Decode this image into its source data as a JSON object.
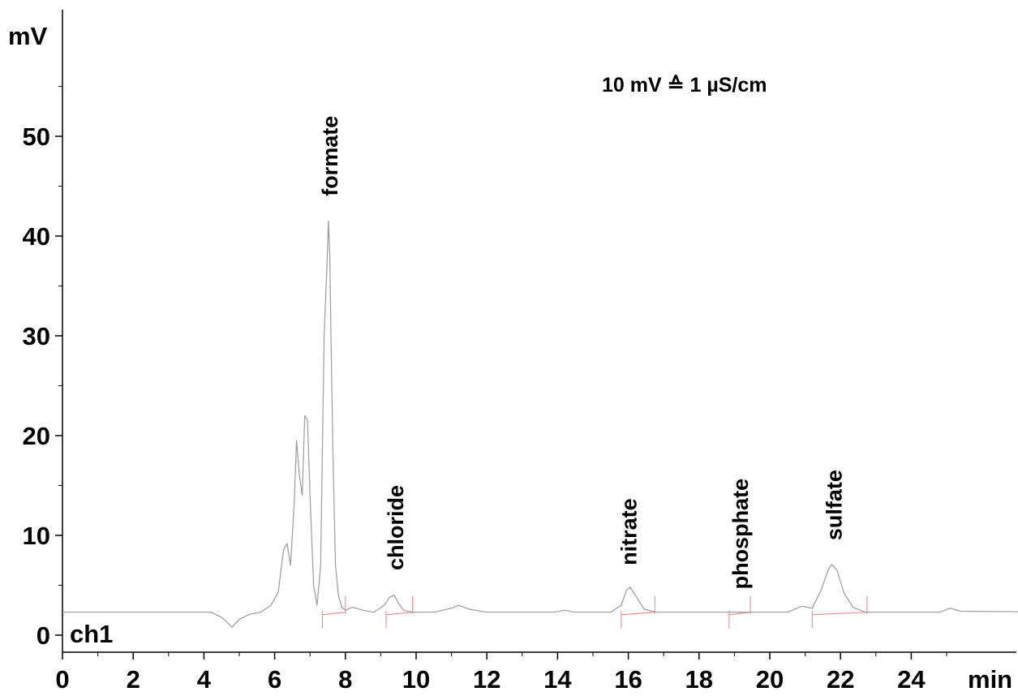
{
  "chart_data": {
    "type": "line",
    "title": "",
    "ylabel": "mV",
    "xlabel": "min",
    "channel_label": "ch1",
    "annotation": "10 mV ≙ 1 µS/cm",
    "xlim": [
      0,
      29
    ],
    "ylim": [
      -2,
      62
    ],
    "xticks": [
      0,
      2,
      4,
      6,
      8,
      10,
      12,
      14,
      16,
      18,
      20,
      22,
      24
    ],
    "xtick_labels": [
      "0",
      "2",
      "4",
      "6",
      "8",
      "10",
      "12",
      "14",
      "16",
      "18",
      "20",
      "22",
      "24"
    ],
    "yticks": [
      0,
      10,
      20,
      30,
      40,
      50
    ],
    "ytick_labels": [
      "0",
      "10",
      "20",
      "30",
      "40",
      "50"
    ],
    "grid": false,
    "baseline": 2.3,
    "colors": {
      "trace": "#9a9a9a",
      "integration": "#f08080",
      "axis": "#000000",
      "text": "#000000"
    },
    "series": [
      {
        "x": [
          0,
          4.2,
          4.5,
          4.8,
          5.0,
          5.3,
          5.6,
          5.9,
          6.1,
          6.25,
          6.35,
          6.45,
          6.55,
          6.62,
          6.7,
          6.78,
          6.85,
          6.93,
          7.0,
          7.1,
          7.2,
          7.3,
          7.4,
          7.48,
          7.52,
          7.56,
          7.6,
          7.65,
          7.72,
          7.8,
          7.9,
          8.0,
          8.2,
          8.5,
          8.8,
          9.1,
          9.25,
          9.38,
          9.5,
          9.65,
          9.9,
          10.5,
          11.0,
          11.2,
          11.5,
          12.0,
          13.9,
          14.2,
          14.5,
          15.5,
          15.8,
          15.95,
          16.05,
          16.2,
          16.45,
          16.8,
          20.5,
          20.9,
          21.2,
          21.45,
          21.65,
          21.75,
          21.9,
          22.1,
          22.35,
          22.7,
          23.2,
          24.8,
          25.1,
          25.4,
          29.0
        ],
        "y": [
          2.3,
          2.3,
          1.8,
          0.8,
          1.6,
          2.1,
          2.3,
          3.0,
          4.3,
          8.5,
          9.2,
          7.0,
          13.0,
          19.5,
          16.0,
          14.0,
          22.0,
          21.5,
          14.0,
          5.0,
          3.0,
          7.0,
          30.0,
          37.0,
          41.5,
          38.0,
          28.0,
          18.0,
          7.0,
          4.0,
          2.8,
          2.5,
          2.8,
          2.5,
          2.3,
          3.0,
          3.8,
          4.0,
          3.2,
          2.5,
          2.3,
          2.3,
          2.7,
          3.0,
          2.6,
          2.3,
          2.3,
          2.5,
          2.3,
          2.3,
          3.0,
          4.5,
          4.8,
          4.0,
          2.6,
          2.3,
          2.3,
          2.9,
          2.7,
          4.5,
          6.5,
          7.1,
          6.5,
          4.2,
          2.8,
          2.3,
          2.3,
          2.3,
          2.7,
          2.4,
          2.3
        ]
      }
    ],
    "peaks": [
      {
        "name": "formate",
        "x": 7.55,
        "label_y": 44
      },
      {
        "name": "chloride",
        "x": 9.4,
        "label_y": 6.5
      },
      {
        "name": "nitrate",
        "x": 16.0,
        "label_y": 7
      },
      {
        "name": "phosphate",
        "x": 19.15,
        "label_y": 4.6
      },
      {
        "name": "sulfate",
        "x": 21.8,
        "label_y": 9.5
      }
    ],
    "integration_marks": [
      7.35,
      8.0,
      9.15,
      9.9,
      15.8,
      16.75,
      18.85,
      19.45,
      21.2,
      22.75
    ]
  }
}
